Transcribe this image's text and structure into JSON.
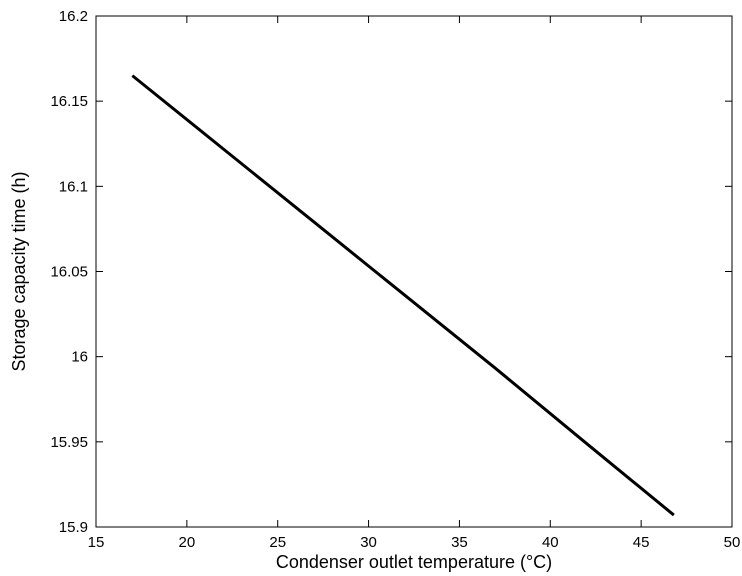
{
  "chart_data": {
    "type": "line",
    "title": "",
    "xlabel": "Condenser outlet temperature (°C)",
    "ylabel": "Storage capacity time (h)",
    "xlim": [
      15,
      50
    ],
    "ylim": [
      15.9,
      16.2
    ],
    "x_ticks": [
      15,
      20,
      25,
      30,
      35,
      40,
      45,
      50
    ],
    "y_ticks": [
      15.9,
      15.95,
      16,
      16.05,
      16.1,
      16.15,
      16.2
    ],
    "x_tick_labels": [
      "15",
      "20",
      "25",
      "30",
      "35",
      "40",
      "45",
      "50"
    ],
    "y_tick_labels": [
      "15.9",
      "15.95",
      "16",
      "16.05",
      "16.1",
      "16.15",
      "16.2"
    ],
    "grid": false,
    "line_color": "#000000",
    "series": [
      {
        "x": [
          17,
          22,
          27,
          32,
          37,
          42,
          46.8
        ],
        "y": [
          16.165,
          16.122,
          16.079,
          16.036,
          15.993,
          15.949,
          15.907
        ]
      }
    ]
  }
}
